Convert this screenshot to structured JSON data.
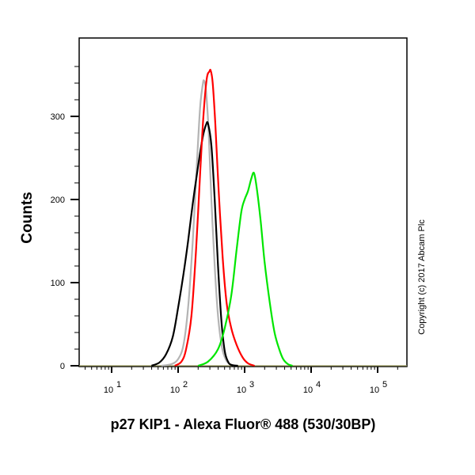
{
  "chart_data": {
    "type": "line",
    "title": "",
    "xlabel": "p27 KIP1 - Alexa Fluor® 488 (530/30BP)",
    "ylabel": "Counts",
    "xscale": "log",
    "xlim_log10": [
      0.5,
      5.25
    ],
    "ylim": [
      0,
      375
    ],
    "x_tick_labels": [
      {
        "base": "10",
        "exp": "1"
      },
      {
        "base": "10",
        "exp": "2"
      },
      {
        "base": "10",
        "exp": "3"
      },
      {
        "base": "10",
        "exp": "4"
      },
      {
        "base": "10",
        "exp": "5"
      }
    ],
    "y_ticks": [
      0,
      100,
      200,
      300
    ],
    "y_tick_labels": [
      "0",
      "100",
      "200",
      "300"
    ],
    "grid": false,
    "legend": null,
    "annotation": "Copyright (c) 2017 Abcam Plc",
    "series": [
      {
        "name": "gray",
        "color": "#b4b4b4",
        "peak_x_log10": 2.39,
        "peak_count": 343,
        "log10_x": [
          1.75,
          1.9,
          2.0,
          2.08,
          2.15,
          2.22,
          2.28,
          2.33,
          2.37,
          2.39,
          2.42,
          2.46,
          2.5,
          2.55,
          2.6,
          2.66,
          2.72,
          2.78,
          2.85
        ],
        "counts": [
          0,
          2,
          8,
          25,
          70,
          150,
          240,
          310,
          338,
          343,
          330,
          280,
          200,
          120,
          60,
          22,
          7,
          2,
          0
        ]
      },
      {
        "name": "black",
        "color": "#000000",
        "peak_x_log10": 2.45,
        "peak_count": 291,
        "log10_x": [
          1.6,
          1.72,
          1.82,
          1.92,
          2.0,
          2.08,
          2.15,
          2.22,
          2.3,
          2.37,
          2.42,
          2.45,
          2.5,
          2.55,
          2.6,
          2.65,
          2.7,
          2.75,
          2.8,
          2.9
        ],
        "counts": [
          0,
          4,
          14,
          35,
          70,
          110,
          150,
          195,
          240,
          275,
          290,
          291,
          265,
          200,
          120,
          55,
          18,
          5,
          1,
          0
        ]
      },
      {
        "name": "red",
        "color": "#ff0000",
        "peak_x_log10": 2.49,
        "peak_count": 355,
        "log10_x": [
          1.95,
          2.05,
          2.12,
          2.2,
          2.27,
          2.33,
          2.38,
          2.43,
          2.47,
          2.49,
          2.52,
          2.56,
          2.61,
          2.67,
          2.73,
          2.8,
          2.88,
          2.97,
          3.05,
          3.15
        ],
        "counts": [
          0,
          5,
          20,
          60,
          140,
          230,
          300,
          345,
          354,
          355,
          340,
          290,
          210,
          130,
          75,
          45,
          25,
          10,
          3,
          0
        ]
      },
      {
        "name": "green",
        "color": "#00e600",
        "peak_x_log10": 3.14,
        "peak_count": 232,
        "log10_x": [
          2.3,
          2.45,
          2.6,
          2.7,
          2.8,
          2.88,
          2.95,
          3.0,
          3.05,
          3.1,
          3.14,
          3.18,
          3.24,
          3.3,
          3.38,
          3.45,
          3.52,
          3.58,
          3.65,
          3.72
        ],
        "counts": [
          0,
          5,
          20,
          45,
          85,
          140,
          185,
          200,
          210,
          225,
          232,
          215,
          175,
          125,
          75,
          40,
          20,
          8,
          2,
          0
        ]
      }
    ]
  },
  "labels": {
    "ylabel": "Counts",
    "xlabel": "p27 KIP1 - Alexa Fluor® 488 (530/30BP)",
    "copyright": "Copyright (c) 2017 Abcam Plc",
    "y_ticks": [
      "0",
      "100",
      "200",
      "300"
    ],
    "x_ticks": [
      {
        "base": "10",
        "exp": "1"
      },
      {
        "base": "10",
        "exp": "2"
      },
      {
        "base": "10",
        "exp": "3"
      },
      {
        "base": "10",
        "exp": "4"
      },
      {
        "base": "10",
        "exp": "5"
      }
    ]
  }
}
